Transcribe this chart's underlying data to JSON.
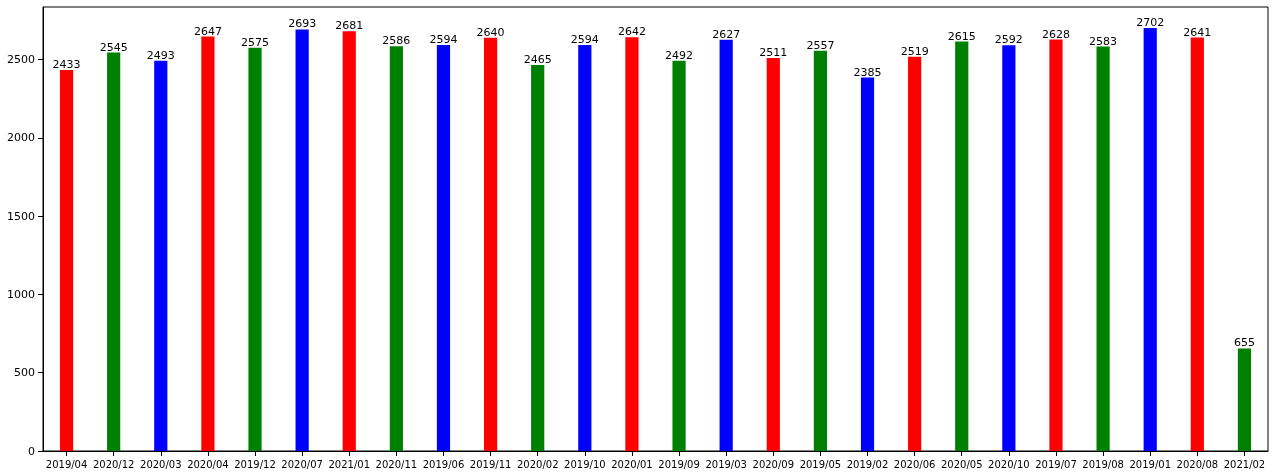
{
  "chart_data": {
    "type": "bar",
    "categories": [
      "2019/04",
      "2020/12",
      "2020/03",
      "2020/04",
      "2019/12",
      "2020/07",
      "2021/01",
      "2020/11",
      "2019/06",
      "2019/11",
      "2020/02",
      "2019/10",
      "2020/01",
      "2019/09",
      "2019/03",
      "2020/09",
      "2019/05",
      "2019/02",
      "2020/06",
      "2020/05",
      "2020/10",
      "2019/07",
      "2019/08",
      "2019/01",
      "2020/08",
      "2021/02"
    ],
    "values": [
      2433,
      2545,
      2493,
      2647,
      2575,
      2693,
      2681,
      2586,
      2594,
      2640,
      2465,
      2594,
      2642,
      2492,
      2627,
      2511,
      2557,
      2385,
      2519,
      2615,
      2592,
      2628,
      2583,
      2702,
      2641,
      655
    ],
    "colors": [
      "#ff0000",
      "#008000",
      "#0000ff",
      "#ff0000",
      "#008000",
      "#0000ff",
      "#ff0000",
      "#008000",
      "#0000ff",
      "#ff0000",
      "#008000",
      "#0000ff",
      "#ff0000",
      "#008000",
      "#0000ff",
      "#ff0000",
      "#008000",
      "#0000ff",
      "#ff0000",
      "#008000",
      "#0000ff",
      "#ff0000",
      "#008000",
      "#0000ff",
      "#ff0000",
      "#008000"
    ],
    "ylim": [
      0,
      2836
    ],
    "yticks": [
      0,
      500,
      1000,
      1500,
      2000,
      2500
    ],
    "data_labels": true,
    "grid": false
  }
}
